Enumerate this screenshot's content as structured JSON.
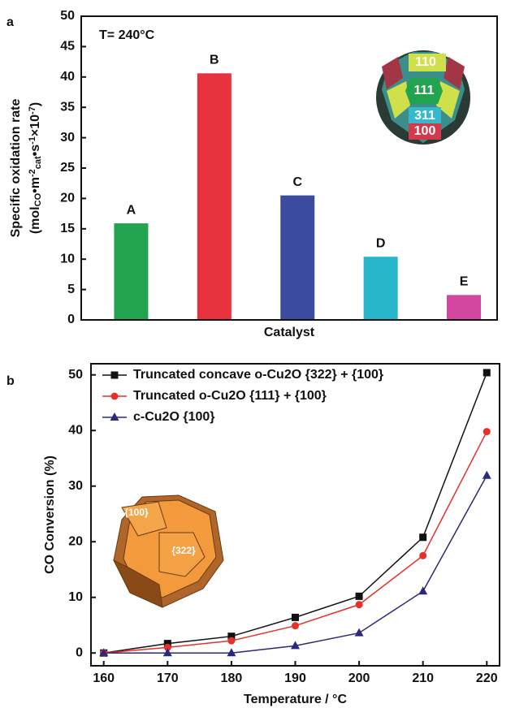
{
  "chart_data": [
    {
      "type": "bar",
      "panel": "a",
      "annotation": "T= 240°C",
      "ylabel_parts": [
        {
          "text": "Specific oxidation rate"
        }
      ],
      "ylabel2_parts": [
        {
          "text": "(mol"
        },
        {
          "text": "CO",
          "shift": "sub"
        },
        {
          "text": "•m"
        },
        {
          "text": "-2",
          "shift": "sup"
        },
        {
          "text": "cat",
          "shift": "sub"
        },
        {
          "text": "•s"
        },
        {
          "text": "-1",
          "shift": "sup"
        },
        {
          "text": "×10"
        },
        {
          "text": "-7",
          "shift": "sup"
        },
        {
          "text": ")"
        }
      ],
      "xlabel": "Catalyst",
      "categories": [
        "A",
        "B",
        "C",
        "D",
        "E"
      ],
      "values": [
        15.9,
        40.6,
        20.5,
        10.4,
        4.1
      ],
      "colors": [
        "#22a350",
        "#e8323e",
        "#3b4ba0",
        "#27b6cc",
        "#d3469f"
      ],
      "ylim": [
        0,
        50
      ],
      "yticks": [
        0,
        5,
        10,
        15,
        20,
        25,
        30,
        35,
        40,
        45,
        50
      ],
      "inset_labels": [
        "110",
        "111",
        "311",
        "100"
      ]
    },
    {
      "type": "line",
      "panel": "b",
      "xlabel": "Temperature / °C",
      "ylabel": "CO Conversion (%)",
      "x": [
        160,
        170,
        180,
        190,
        200,
        210,
        220
      ],
      "series": [
        {
          "name": "Truncated concave o-Cu2O {322} + {100}",
          "color": "#111111",
          "marker": "square",
          "values": [
            0,
            1.7,
            3.0,
            6.4,
            10.2,
            20.8,
            50.4
          ]
        },
        {
          "name": "Truncated o-Cu2O {111} + {100}",
          "color": "#e8302a",
          "marker": "circle",
          "values": [
            0,
            1.0,
            2.2,
            4.9,
            8.7,
            17.5,
            39.8
          ]
        },
        {
          "name": "c-Cu2O {100}",
          "color": "#2b2a7a",
          "marker": "triangle",
          "values": [
            0,
            0,
            0,
            1.3,
            3.6,
            11.1,
            31.9
          ]
        }
      ],
      "xlim": [
        158,
        222
      ],
      "xticks": [
        160,
        170,
        180,
        190,
        200,
        210,
        220
      ],
      "ylim": [
        -2.3,
        52
      ],
      "yticks": [
        0,
        10,
        20,
        30,
        40,
        50
      ],
      "inset_labels": [
        "{100}",
        "{322}"
      ]
    }
  ]
}
